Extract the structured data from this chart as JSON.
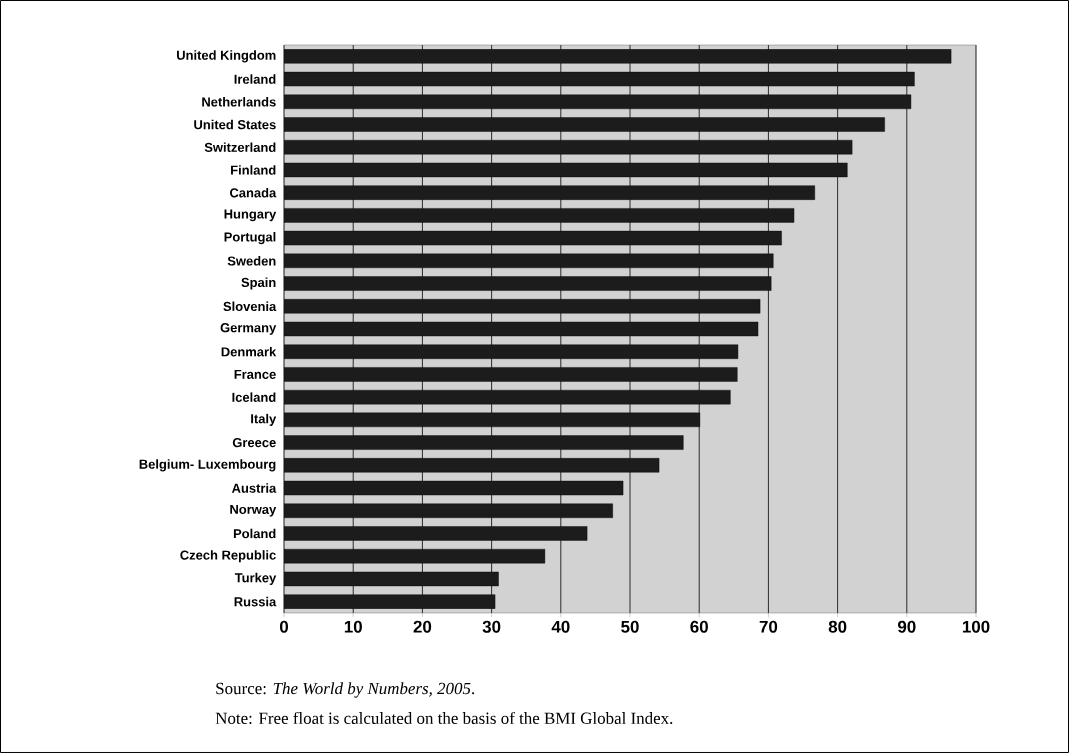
{
  "chart_data": {
    "type": "bar",
    "orientation": "horizontal",
    "categories": [
      "United Kingdom",
      "Ireland",
      "Netherlands",
      "United States",
      "Switzerland",
      "Finland",
      "Canada",
      "Hungary",
      "Portugal",
      "Sweden",
      "Spain",
      "Slovenia",
      "Germany",
      "Denmark",
      "France",
      "Iceland",
      "Italy",
      "Greece",
      "Belgium- Luxembourg",
      "Austria",
      "Norway",
      "Poland",
      "Czech Republic",
      "Turkey",
      "Russia"
    ],
    "values": [
      96.4,
      91.1,
      90.6,
      86.8,
      82.1,
      81.4,
      76.7,
      73.7,
      71.9,
      70.7,
      70.4,
      68.8,
      68.5,
      65.6,
      65.5,
      64.5,
      60.1,
      57.7,
      54.2,
      49.0,
      47.5,
      43.8,
      37.7,
      31.0,
      30.5
    ],
    "color": "#1c1c1c",
    "xlim": [
      0,
      100
    ],
    "xticks": [
      0,
      10,
      20,
      30,
      40,
      50,
      60,
      70,
      80,
      90,
      100
    ],
    "grid": "x",
    "annotations": [
      "Source: *The World by Numbers, 2005*.",
      "Note: Free float is calculated on the basis of the BMI Global Index."
    ]
  }
}
